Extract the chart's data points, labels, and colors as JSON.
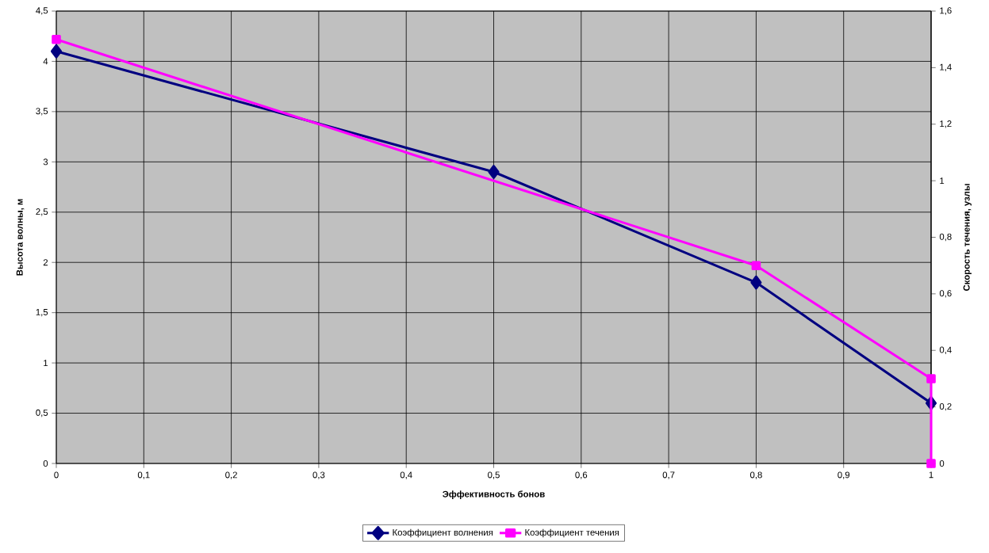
{
  "chart_data": {
    "type": "line",
    "xlabel": "Эффективность бонов",
    "ylabel": "Высота волны, м",
    "y2label": "Скорость течения, узлы",
    "series": [
      {
        "name": "Коэффициент волнения",
        "color": "#000080",
        "marker": "diamond",
        "x": [
          0,
          0.5,
          0.8,
          1
        ],
        "values": [
          4.1,
          2.9,
          1.8,
          0.6
        ]
      },
      {
        "name": "Коэффициент течения",
        "color": "#ff00ff",
        "marker": "square",
        "axis": "y2",
        "x": [
          0,
          0.8,
          1,
          1
        ],
        "values": [
          1.5,
          0.7,
          0.3,
          0
        ]
      }
    ],
    "xlim": [
      0,
      1
    ],
    "xticks": [
      0,
      {
        "value": 0.1,
        "label": "0,1"
      },
      {
        "value": 0.2,
        "label": "0,2"
      },
      {
        "value": 0.3,
        "label": "0,3"
      },
      {
        "value": 0.4,
        "label": "0,4"
      },
      {
        "value": 0.5,
        "label": "0,5"
      },
      {
        "value": 0.6,
        "label": "0,6"
      },
      {
        "value": 0.7,
        "label": "0,7"
      },
      {
        "value": 0.8,
        "label": "0,8"
      },
      {
        "value": 0.9,
        "label": "0,9"
      },
      1
    ],
    "ylim": [
      0,
      4.5
    ],
    "yticks": [
      0,
      {
        "value": 0.5,
        "label": "0,5"
      },
      1,
      {
        "value": 1.5,
        "label": "1,5"
      },
      2,
      {
        "value": 2.5,
        "label": "2,5"
      },
      3,
      {
        "value": 3.5,
        "label": "3,5"
      },
      4,
      {
        "value": 4.5,
        "label": "4,5"
      }
    ],
    "y2lim": [
      0,
      1.6
    ],
    "y2ticks": [
      0,
      {
        "value": 0.2,
        "label": "0,2"
      },
      {
        "value": 0.4,
        "label": "0,4"
      },
      {
        "value": 0.6,
        "label": "0,6"
      },
      {
        "value": 0.8,
        "label": "0,8"
      },
      1,
      {
        "value": 1.2,
        "label": "1,2"
      },
      {
        "value": 1.4,
        "label": "1,4"
      },
      {
        "value": 1.6,
        "label": "1,6"
      }
    ],
    "grid": true,
    "legend": "bottom"
  }
}
